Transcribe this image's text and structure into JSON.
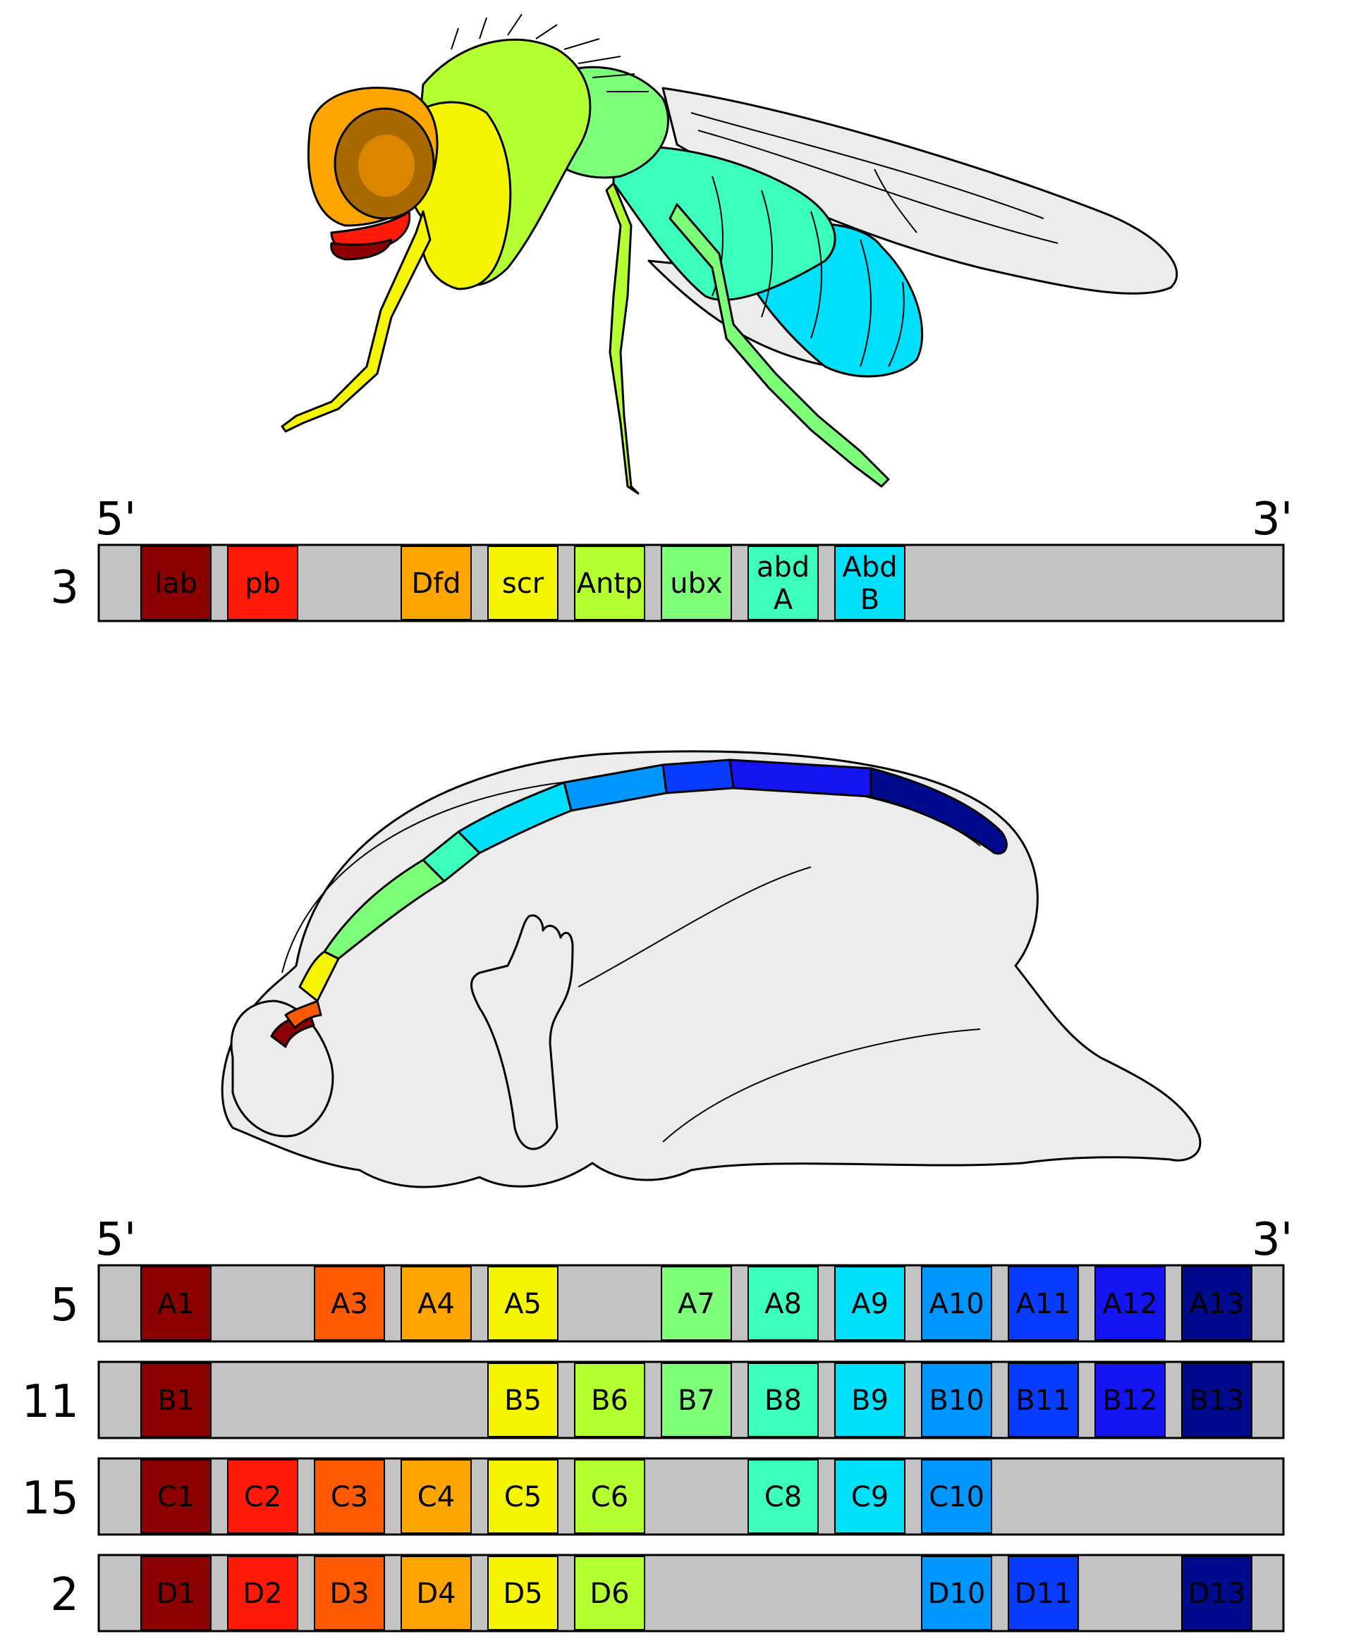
{
  "diagram": {
    "fly_cluster": {
      "end_labels": {
        "five_prime": "5'",
        "three_prime": "3'"
      },
      "chromosome": "3",
      "genes": [
        {
          "label": "lab",
          "slot": 0,
          "color": "#8b0000"
        },
        {
          "label": "pb",
          "slot": 1,
          "color": "#ff1a0a"
        },
        {
          "label": "Dfd",
          "slot": 3,
          "color": "#ffa500"
        },
        {
          "label": "scr",
          "slot": 4,
          "color": "#f5f500"
        },
        {
          "label": "Antp",
          "slot": 5,
          "color": "#b4ff32"
        },
        {
          "label": "ubx",
          "slot": 6,
          "color": "#7dff7a"
        },
        {
          "label": "abd\nA",
          "slot": 7,
          "color": "#3cffbe"
        },
        {
          "label": "Abd\nB",
          "slot": 8,
          "color": "#00e0fa"
        }
      ]
    },
    "human_clusters": {
      "end_labels": {
        "five_prime": "5'",
        "three_prime": "3'"
      },
      "rows": [
        {
          "chromosome": "5",
          "genes": [
            {
              "label": "A1",
              "slot": 0
            },
            {
              "label": "A3",
              "slot": 2
            },
            {
              "label": "A4",
              "slot": 3
            },
            {
              "label": "A5",
              "slot": 4
            },
            {
              "label": "A7",
              "slot": 6
            },
            {
              "label": "A8",
              "slot": 7
            },
            {
              "label": "A9",
              "slot": 8
            },
            {
              "label": "A10",
              "slot": 9
            },
            {
              "label": "A11",
              "slot": 10
            },
            {
              "label": "A12",
              "slot": 11
            },
            {
              "label": "A13",
              "slot": 12
            }
          ]
        },
        {
          "chromosome": "11",
          "genes": [
            {
              "label": "B1",
              "slot": 0
            },
            {
              "label": "B5",
              "slot": 4
            },
            {
              "label": "B6",
              "slot": 5
            },
            {
              "label": "B7",
              "slot": 6
            },
            {
              "label": "B8",
              "slot": 7
            },
            {
              "label": "B9",
              "slot": 8
            },
            {
              "label": "B10",
              "slot": 9
            },
            {
              "label": "B11",
              "slot": 10
            },
            {
              "label": "B12",
              "slot": 11
            },
            {
              "label": "B13",
              "slot": 12
            }
          ]
        },
        {
          "chromosome": "15",
          "genes": [
            {
              "label": "C1",
              "slot": 0
            },
            {
              "label": "C2",
              "slot": 1
            },
            {
              "label": "C3",
              "slot": 2
            },
            {
              "label": "C4",
              "slot": 3
            },
            {
              "label": "C5",
              "slot": 4
            },
            {
              "label": "C6",
              "slot": 5
            },
            {
              "label": "C8",
              "slot": 7
            },
            {
              "label": "C9",
              "slot": 8
            },
            {
              "label": "C10",
              "slot": 9
            }
          ]
        },
        {
          "chromosome": "2",
          "genes": [
            {
              "label": "D1",
              "slot": 0
            },
            {
              "label": "D2",
              "slot": 1
            },
            {
              "label": "D3",
              "slot": 2
            },
            {
              "label": "D4",
              "slot": 3
            },
            {
              "label": "D5",
              "slot": 4
            },
            {
              "label": "D6",
              "slot": 5
            },
            {
              "label": "D10",
              "slot": 9
            },
            {
              "label": "D11",
              "slot": 10
            },
            {
              "label": "D13",
              "slot": 12
            }
          ]
        }
      ]
    },
    "paralog_group_colors": [
      "#8b0000",
      "#ff1a0a",
      "#ff5a00",
      "#ffa500",
      "#f5f500",
      "#b4ff32",
      "#7dff7a",
      "#3cffbe",
      "#00e0fa",
      "#0096ff",
      "#0a3cff",
      "#1414f0",
      "#000a8c"
    ],
    "chromosome_fill": "#c3c3c3",
    "body_fill": "#ececec"
  }
}
